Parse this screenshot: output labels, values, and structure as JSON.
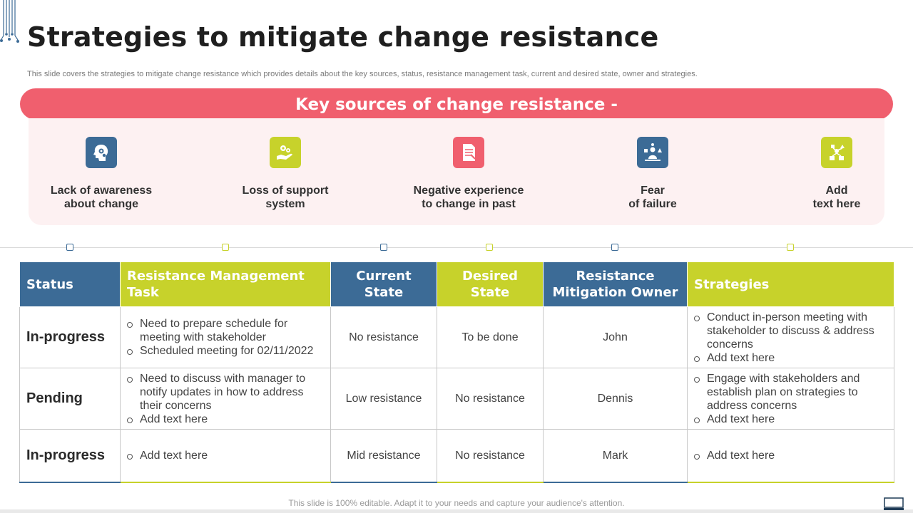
{
  "page": {
    "title": "Strategies to mitigate change resistance",
    "subtitle": "This slide covers the strategies to mitigate change resistance which provides details about the key sources, status, resistance management task, current and desired state, owner and strategies.",
    "footer": "This slide is 100% editable. Adapt it to your needs and capture your audience's attention."
  },
  "sources": {
    "heading": "Key sources of change resistance -",
    "items": [
      {
        "label": "Lack of awareness\nabout change",
        "icon": "head-gears-icon",
        "color": "#3c6b96"
      },
      {
        "label": "Loss of support\nsystem",
        "icon": "hand-gears-icon",
        "color": "#c7d22b"
      },
      {
        "label": "Negative experience\nto change in past",
        "icon": "document-icon",
        "color": "#f05f6e"
      },
      {
        "label": "Fear\nof failure",
        "icon": "person-shapes-icon",
        "color": "#3c6b96"
      },
      {
        "label": "Add\ntext here",
        "icon": "network-icon",
        "color": "#c7d22b"
      }
    ]
  },
  "table": {
    "headers": {
      "status": "Status",
      "task": "Resistance Management Task",
      "current": "Current State",
      "desired": "Desired State",
      "owner": "Resistance Mitigation Owner",
      "strategies": "Strategies"
    },
    "rows": [
      {
        "status": "In-progress",
        "tasks": [
          "Need to prepare schedule for meeting with stakeholder",
          "Scheduled meeting for 02/11/2022"
        ],
        "current": "No resistance",
        "desired": "To be done",
        "owner": "John",
        "strategies": [
          "Conduct in-person meeting with stakeholder to discuss & address concerns",
          "Add text here"
        ]
      },
      {
        "status": "Pending",
        "tasks": [
          "Need to discuss with manager to notify updates in how to address their concerns",
          "Add text here"
        ],
        "current": "Low resistance",
        "desired": "No resistance",
        "owner": "Dennis",
        "strategies": [
          "Engage with stakeholders and establish plan on strategies to address concerns",
          "Add text here"
        ]
      },
      {
        "status": "In-progress",
        "tasks": [
          "Add text here"
        ],
        "current": "Mid resistance",
        "desired": "No resistance",
        "owner": "Mark",
        "strategies": [
          "Add text here"
        ]
      }
    ]
  },
  "colors": {
    "accent_red": "#f05f6e",
    "accent_blue": "#3c6b96",
    "accent_green": "#c7d22b",
    "panel_bg": "#fdf1f2"
  }
}
